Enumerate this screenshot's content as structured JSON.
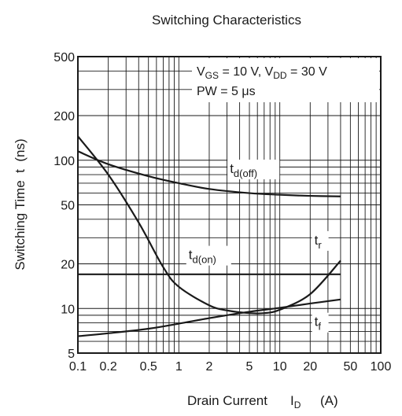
{
  "chart_data": {
    "type": "line",
    "title": "Switching Characteristics",
    "xlabel": "Drain Current",
    "xlabel_symbol": "I",
    "xlabel_sub": "D",
    "xlabel_unit": "(A)",
    "ylabel": "Switching Time  t  (ns)",
    "x_scale": "log",
    "y_scale": "log",
    "xlim": [
      0.1,
      100
    ],
    "ylim": [
      5,
      500
    ],
    "grid": true,
    "x_ticks": [
      {
        "value": 0.1,
        "label": "0.1"
      },
      {
        "value": 0.2,
        "label": "0.2"
      },
      {
        "value": 0.5,
        "label": "0.5"
      },
      {
        "value": 1,
        "label": "1"
      },
      {
        "value": 2,
        "label": "2"
      },
      {
        "value": 5,
        "label": "5"
      },
      {
        "value": 10,
        "label": "10"
      },
      {
        "value": 20,
        "label": "20"
      },
      {
        "value": 50,
        "label": "50"
      },
      {
        "value": 100,
        "label": "100"
      }
    ],
    "y_ticks": [
      {
        "value": 5,
        "label": "5"
      },
      {
        "value": 10,
        "label": "10"
      },
      {
        "value": 20,
        "label": "20"
      },
      {
        "value": 50,
        "label": "50"
      },
      {
        "value": 100,
        "label": "100"
      },
      {
        "value": 200,
        "label": "200"
      },
      {
        "value": 500,
        "label": "500"
      }
    ],
    "conditions": {
      "line1": {
        "v1": "V",
        "v1_sub": "GS",
        "mid": " = 10 V, ",
        "v2": "V",
        "v2_sub": "DD",
        "end": " = 30 V"
      },
      "line2": {
        "text": "PW = 5 μs"
      }
    },
    "series": [
      {
        "id": "td_off",
        "label": "t",
        "label_sub": "d(off)",
        "label_anchor": {
          "x": 3.2,
          "y": 82
        },
        "x": [
          0.1,
          0.2,
          0.5,
          1,
          2,
          5,
          10,
          20,
          40
        ],
        "y": [
          115,
          94,
          78,
          70,
          64,
          60,
          58.5,
          57.5,
          57
        ]
      },
      {
        "id": "tr",
        "label": "t",
        "label_sub": "r",
        "label_anchor": {
          "x": 22,
          "y": 27
        },
        "x": [
          0.1,
          0.2,
          0.4,
          0.7,
          1,
          2,
          3,
          5,
          7,
          10,
          20,
          40
        ],
        "y": [
          145,
          80,
          38,
          19,
          14,
          10.5,
          9.7,
          9.3,
          9.3,
          9.8,
          12.5,
          21
        ]
      },
      {
        "id": "td_on",
        "label": "t",
        "label_sub": "d(on)",
        "label_anchor": {
          "x": 1.25,
          "y": 21.5
        },
        "x": [
          0.1,
          40
        ],
        "y": [
          17,
          17
        ]
      },
      {
        "id": "tf",
        "label": "t",
        "label_sub": "f",
        "label_anchor": {
          "x": 22,
          "y": 7.6
        },
        "x": [
          0.1,
          0.2,
          0.5,
          1,
          2,
          5,
          10,
          20,
          40
        ],
        "y": [
          6.5,
          6.8,
          7.3,
          7.9,
          8.6,
          9.5,
          10.1,
          10.8,
          11.5
        ]
      }
    ]
  }
}
